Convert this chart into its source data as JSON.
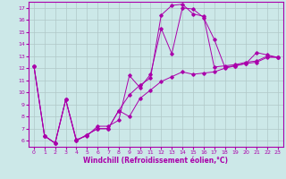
{
  "xlabel": "Windchill (Refroidissement éolien,°C)",
  "xlim": [
    -0.5,
    23.5
  ],
  "ylim": [
    5.5,
    17.5
  ],
  "xticks": [
    0,
    1,
    2,
    3,
    4,
    5,
    6,
    7,
    8,
    9,
    10,
    11,
    12,
    13,
    14,
    15,
    16,
    17,
    18,
    19,
    20,
    21,
    22,
    23
  ],
  "yticks": [
    6,
    7,
    8,
    9,
    10,
    11,
    12,
    13,
    14,
    15,
    16,
    17
  ],
  "bg_color": "#cce8e8",
  "line_color": "#aa00aa",
  "grid_color": "#b0c8c8",
  "series": [
    {
      "x": [
        0,
        1,
        2,
        3,
        4,
        5,
        6,
        7,
        8,
        9,
        10,
        11,
        12,
        13,
        14,
        15,
        16,
        17,
        18,
        19,
        20,
        21,
        22,
        23
      ],
      "y": [
        12.2,
        6.4,
        5.8,
        9.4,
        6.1,
        6.4,
        7.2,
        7.2,
        7.7,
        11.4,
        10.4,
        11.5,
        15.3,
        13.2,
        17.0,
        16.9,
        16.2,
        14.4,
        12.1,
        12.2,
        12.4,
        13.3,
        13.1,
        12.9
      ]
    },
    {
      "x": [
        0,
        1,
        2,
        3,
        4,
        5,
        6,
        7,
        8,
        9,
        10,
        11,
        12,
        13,
        14,
        15,
        16,
        17,
        18,
        19,
        20,
        21,
        22,
        23
      ],
      "y": [
        12.2,
        6.4,
        5.8,
        9.4,
        6.0,
        6.5,
        7.0,
        7.0,
        8.5,
        9.8,
        10.6,
        11.2,
        16.4,
        17.2,
        17.3,
        16.5,
        16.3,
        12.1,
        12.2,
        12.3,
        12.5,
        12.6,
        13.0,
        12.9
      ]
    },
    {
      "x": [
        0,
        1,
        2,
        3,
        4,
        5,
        6,
        7,
        8,
        9,
        10,
        11,
        12,
        13,
        14,
        15,
        16,
        17,
        18,
        19,
        20,
        21,
        22,
        23
      ],
      "y": [
        12.2,
        6.4,
        5.8,
        9.4,
        6.0,
        6.5,
        7.0,
        7.0,
        8.5,
        8.0,
        9.5,
        10.2,
        10.9,
        11.3,
        11.7,
        11.5,
        11.6,
        11.7,
        12.0,
        12.2,
        12.4,
        12.5,
        12.9,
        12.9
      ]
    }
  ]
}
